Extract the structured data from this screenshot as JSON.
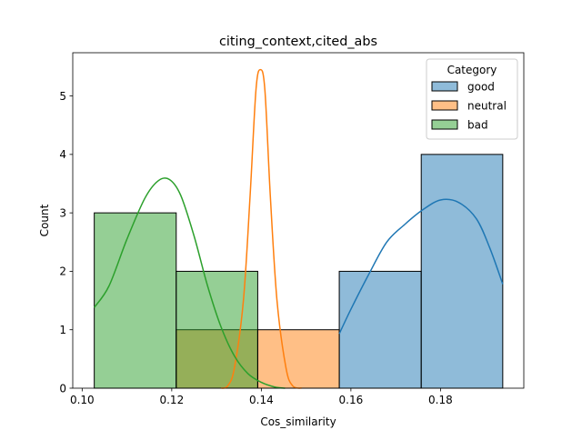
{
  "chart_data": {
    "type": "histogram",
    "title": "citing_context,cited_abs",
    "xlabel": "Cos_similarity",
    "ylabel": "Count",
    "xlim": [
      0.0979,
      0.1986
    ],
    "ylim": [
      0,
      5.74
    ],
    "x_ticks": [
      0.1,
      0.12,
      0.14,
      0.16,
      0.18
    ],
    "x_tick_labels": [
      "0.10",
      "0.12",
      "0.14",
      "0.16",
      "0.18"
    ],
    "y_ticks": [
      0,
      1,
      2,
      3,
      4,
      5
    ],
    "y_tick_labels": [
      "0",
      "1",
      "2",
      "3",
      "4",
      "5"
    ],
    "grid": false,
    "legend": {
      "title": "Category",
      "placement": "top-right"
    },
    "series": [
      {
        "name": "good",
        "color": "#1f77b4",
        "bins": [
          {
            "x0": 0.1574,
            "x1": 0.1757,
            "count": 2
          },
          {
            "x0": 0.1757,
            "x1": 0.1939,
            "count": 4
          }
        ],
        "kde": [
          [
            0.1574,
            0.93
          ],
          [
            0.16,
            1.35
          ],
          [
            0.164,
            1.95
          ],
          [
            0.168,
            2.5
          ],
          [
            0.172,
            2.8
          ],
          [
            0.176,
            3.05
          ],
          [
            0.18,
            3.22
          ],
          [
            0.184,
            3.18
          ],
          [
            0.188,
            2.9
          ],
          [
            0.191,
            2.4
          ],
          [
            0.1939,
            1.78
          ]
        ]
      },
      {
        "name": "neutral",
        "color": "#ff7f0e",
        "bins": [
          {
            "x0": 0.121,
            "x1": 0.1392,
            "count": 1
          },
          {
            "x0": 0.1392,
            "x1": 0.1574,
            "count": 1
          }
        ],
        "kde": [
          [
            0.131,
            0.0
          ],
          [
            0.1325,
            0.04
          ],
          [
            0.134,
            0.35
          ],
          [
            0.136,
            1.5
          ],
          [
            0.1375,
            3.3
          ],
          [
            0.1388,
            5.1
          ],
          [
            0.1398,
            5.45
          ],
          [
            0.1408,
            5.1
          ],
          [
            0.142,
            3.3
          ],
          [
            0.1435,
            1.5
          ],
          [
            0.1455,
            0.35
          ],
          [
            0.147,
            0.04
          ],
          [
            0.149,
            0.0
          ]
        ]
      },
      {
        "name": "bad",
        "color": "#2ca02c",
        "bins": [
          {
            "x0": 0.1027,
            "x1": 0.121,
            "count": 3
          },
          {
            "x0": 0.121,
            "x1": 0.1392,
            "count": 2
          }
        ],
        "kde": [
          [
            0.1027,
            1.38
          ],
          [
            0.106,
            1.75
          ],
          [
            0.11,
            2.55
          ],
          [
            0.114,
            3.25
          ],
          [
            0.117,
            3.55
          ],
          [
            0.1195,
            3.57
          ],
          [
            0.122,
            3.3
          ],
          [
            0.125,
            2.6
          ],
          [
            0.128,
            1.75
          ],
          [
            0.131,
            1.05
          ],
          [
            0.134,
            0.55
          ],
          [
            0.137,
            0.25
          ],
          [
            0.14,
            0.1
          ],
          [
            0.143,
            0.02
          ],
          [
            0.1453,
            0.0
          ]
        ]
      }
    ]
  }
}
